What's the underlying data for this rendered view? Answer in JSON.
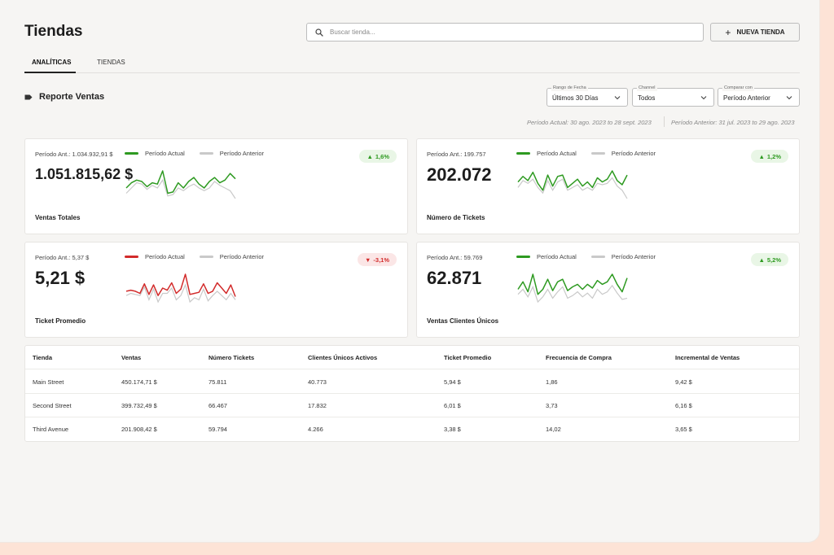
{
  "header": {
    "title": "Tiendas",
    "search_placeholder": "Buscar tienda...",
    "new_store_label": "NUEVA TIENDA"
  },
  "tabs": [
    {
      "label": "ANALÍTICAS",
      "active": true
    },
    {
      "label": "TIENDAS",
      "active": false
    }
  ],
  "report": {
    "title": "Reporte Ventas",
    "filters": [
      {
        "label": "Rango de Fecha",
        "value": "Últimos 30 Días"
      },
      {
        "label": "Channel",
        "value": "Todos"
      },
      {
        "label": "Comparar con",
        "value": "Período Anterior"
      }
    ],
    "period_current": "Período Actual: 30 ago. 2023 to 28 sept. 2023",
    "period_previous": "Período Anterior: 31 jul. 2023 to 29 ago. 2023"
  },
  "legend": {
    "current": "Período Actual",
    "previous": "Período Anterior"
  },
  "colors": {
    "up": "#2e9a21",
    "down": "#d22b2b",
    "previous": "#c9c9c9"
  },
  "cards": [
    {
      "metric": "Ventas Totales",
      "previous_label": "Período Ant.: 1.034.932,91 $",
      "value": "1.051.815,62 $",
      "change": "1,6%",
      "direction": "up",
      "current_series": [
        22,
        26,
        28,
        27,
        23,
        26,
        25,
        35,
        18,
        19,
        26,
        22,
        27,
        30,
        25,
        22,
        27,
        30,
        26,
        28,
        33,
        29
      ],
      "previous_series": [
        18,
        22,
        26,
        25,
        21,
        24,
        22,
        28,
        16,
        17,
        22,
        20,
        23,
        25,
        22,
        20,
        22,
        27,
        24,
        22,
        20,
        14
      ]
    },
    {
      "metric": "Número de Tickets",
      "previous_label": "Período Ant.: 199.757",
      "value": "202.072",
      "change": "1,2%",
      "direction": "up",
      "current_series": [
        26,
        30,
        27,
        33,
        25,
        20,
        31,
        23,
        30,
        31,
        22,
        25,
        28,
        23,
        26,
        22,
        29,
        26,
        28,
        34,
        27,
        24,
        31
      ],
      "previous_series": [
        22,
        27,
        25,
        28,
        22,
        18,
        27,
        20,
        26,
        28,
        20,
        22,
        24,
        20,
        22,
        20,
        25,
        24,
        25,
        29,
        23,
        20,
        14
      ]
    },
    {
      "metric": "Ticket Promedio",
      "previous_label": "Período Ant.: 5,37 $",
      "value": "5,21 $",
      "change": "-3,1%",
      "direction": "down",
      "current_series": [
        22,
        23,
        22,
        20,
        29,
        19,
        28,
        18,
        25,
        23,
        30,
        20,
        24,
        38,
        19,
        20,
        21,
        29,
        20,
        22,
        30,
        25,
        20,
        28,
        17
      ],
      "previous_series": [
        18,
        20,
        19,
        18,
        26,
        14,
        24,
        12,
        20,
        20,
        25,
        14,
        18,
        28,
        12,
        16,
        14,
        24,
        13,
        18,
        22,
        18,
        14,
        20,
        14
      ]
    },
    {
      "metric": "Ventas Clientes Únicos",
      "previous_label": "Período Ant.: 59.769",
      "value": "62.871",
      "change": "5,2%",
      "direction": "up",
      "current_series": [
        22,
        28,
        20,
        34,
        18,
        22,
        30,
        21,
        28,
        30,
        21,
        24,
        26,
        22,
        26,
        23,
        29,
        26,
        28,
        34,
        26,
        20,
        31
      ],
      "previous_series": [
        18,
        22,
        16,
        24,
        12,
        16,
        22,
        15,
        20,
        24,
        15,
        17,
        20,
        16,
        19,
        15,
        22,
        18,
        20,
        25,
        19,
        14,
        15
      ]
    }
  ],
  "table": {
    "columns": [
      "Tienda",
      "Ventas",
      "Número Tickets",
      "Clientes Únicos Activos",
      "Ticket Promedio",
      "Frecuencia de Compra",
      "Incremental de Ventas"
    ],
    "rows": [
      [
        "Main Street",
        "450.174,71 $",
        "75.811",
        "40.773",
        "5,94 $",
        "1,86",
        "9,42 $"
      ],
      [
        "Second Street",
        "399.732,49 $",
        "66.467",
        "17.832",
        "6,01 $",
        "3,73",
        "6,16 $"
      ],
      [
        "Third Avenue",
        "201.908,42 $",
        "59.794",
        "4.266",
        "3,38 $",
        "14,02",
        "3,65 $"
      ]
    ]
  }
}
